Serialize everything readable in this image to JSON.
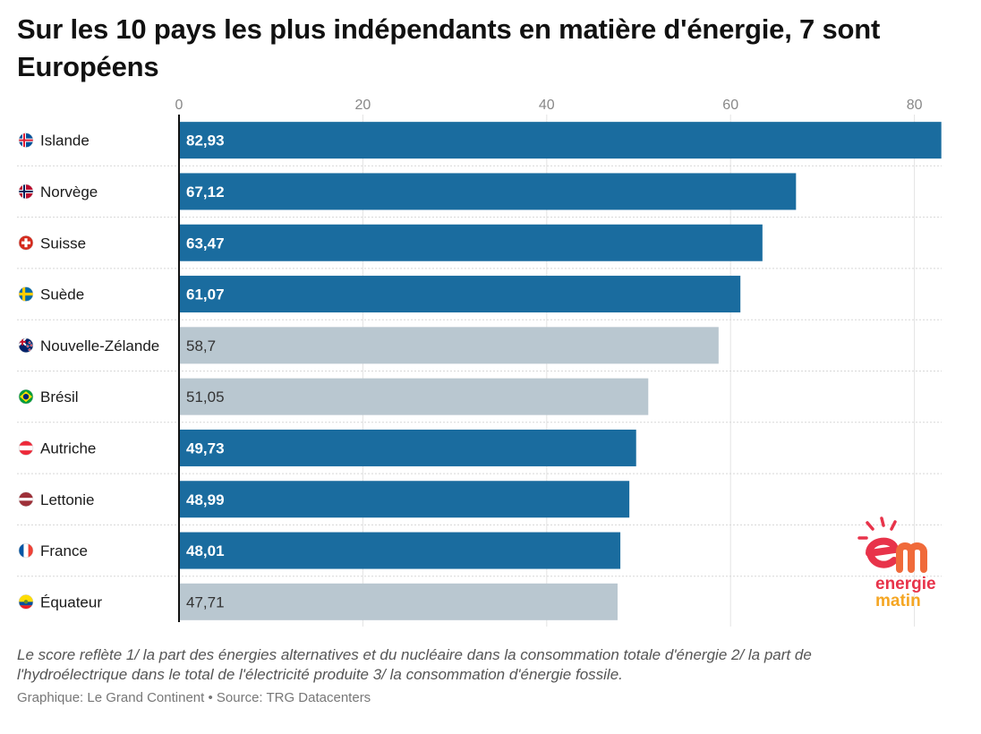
{
  "title": "Sur les 10 pays les plus indépendants en matière d'énergie, 7 sont Européens",
  "note": "Le score reflète 1/ la part des énergies alternatives et du nucléaire dans la consommation totale d'énergie 2/ la part de l'hydroélectrique dans le total de l'électricité produite 3/ la consommation d'énergie fossile.",
  "source": "Graphique: Le Grand Continent • Source: TRG Datacenters",
  "logo": {
    "line1": "energie",
    "line2": "matin",
    "primary_color": "#e8334a",
    "secondary_color": "#f5a623"
  },
  "colors": {
    "europe": "#1a6c9f",
    "other": "#b9c7d0",
    "label_on_europe": "#ffffff",
    "label_on_other": "#333333"
  },
  "chart_data": {
    "type": "bar",
    "orientation": "horizontal",
    "title": "Sur les 10 pays les plus indépendants en matière d'énergie, 7 sont Européens",
    "categories": [
      "Islande",
      "Norvège",
      "Suisse",
      "Suède",
      "Nouvelle-Zélande",
      "Brésil",
      "Autriche",
      "Lettonie",
      "France",
      "Équateur"
    ],
    "values": [
      82.93,
      67.12,
      63.47,
      61.07,
      58.7,
      51.05,
      49.73,
      48.99,
      48.01,
      47.71
    ],
    "value_labels": [
      "82,93",
      "67,12",
      "63,47",
      "61,07",
      "58,7",
      "51,05",
      "49,73",
      "48,99",
      "48,01",
      "47,71"
    ],
    "european": [
      true,
      true,
      true,
      true,
      false,
      false,
      true,
      true,
      true,
      false
    ],
    "flags": [
      "iceland-flag-icon",
      "norway-flag-icon",
      "switzerland-flag-icon",
      "sweden-flag-icon",
      "new-zealand-flag-icon",
      "brazil-flag-icon",
      "austria-flag-icon",
      "latvia-flag-icon",
      "france-flag-icon",
      "ecuador-flag-icon"
    ],
    "xticks": [
      0,
      20,
      40,
      60,
      80
    ],
    "xtick_labels": [
      "0",
      "20",
      "40",
      "60",
      "80"
    ],
    "xlim": [
      0,
      83
    ],
    "xlabel": "",
    "ylabel": "",
    "grid": true,
    "legend": "none"
  }
}
